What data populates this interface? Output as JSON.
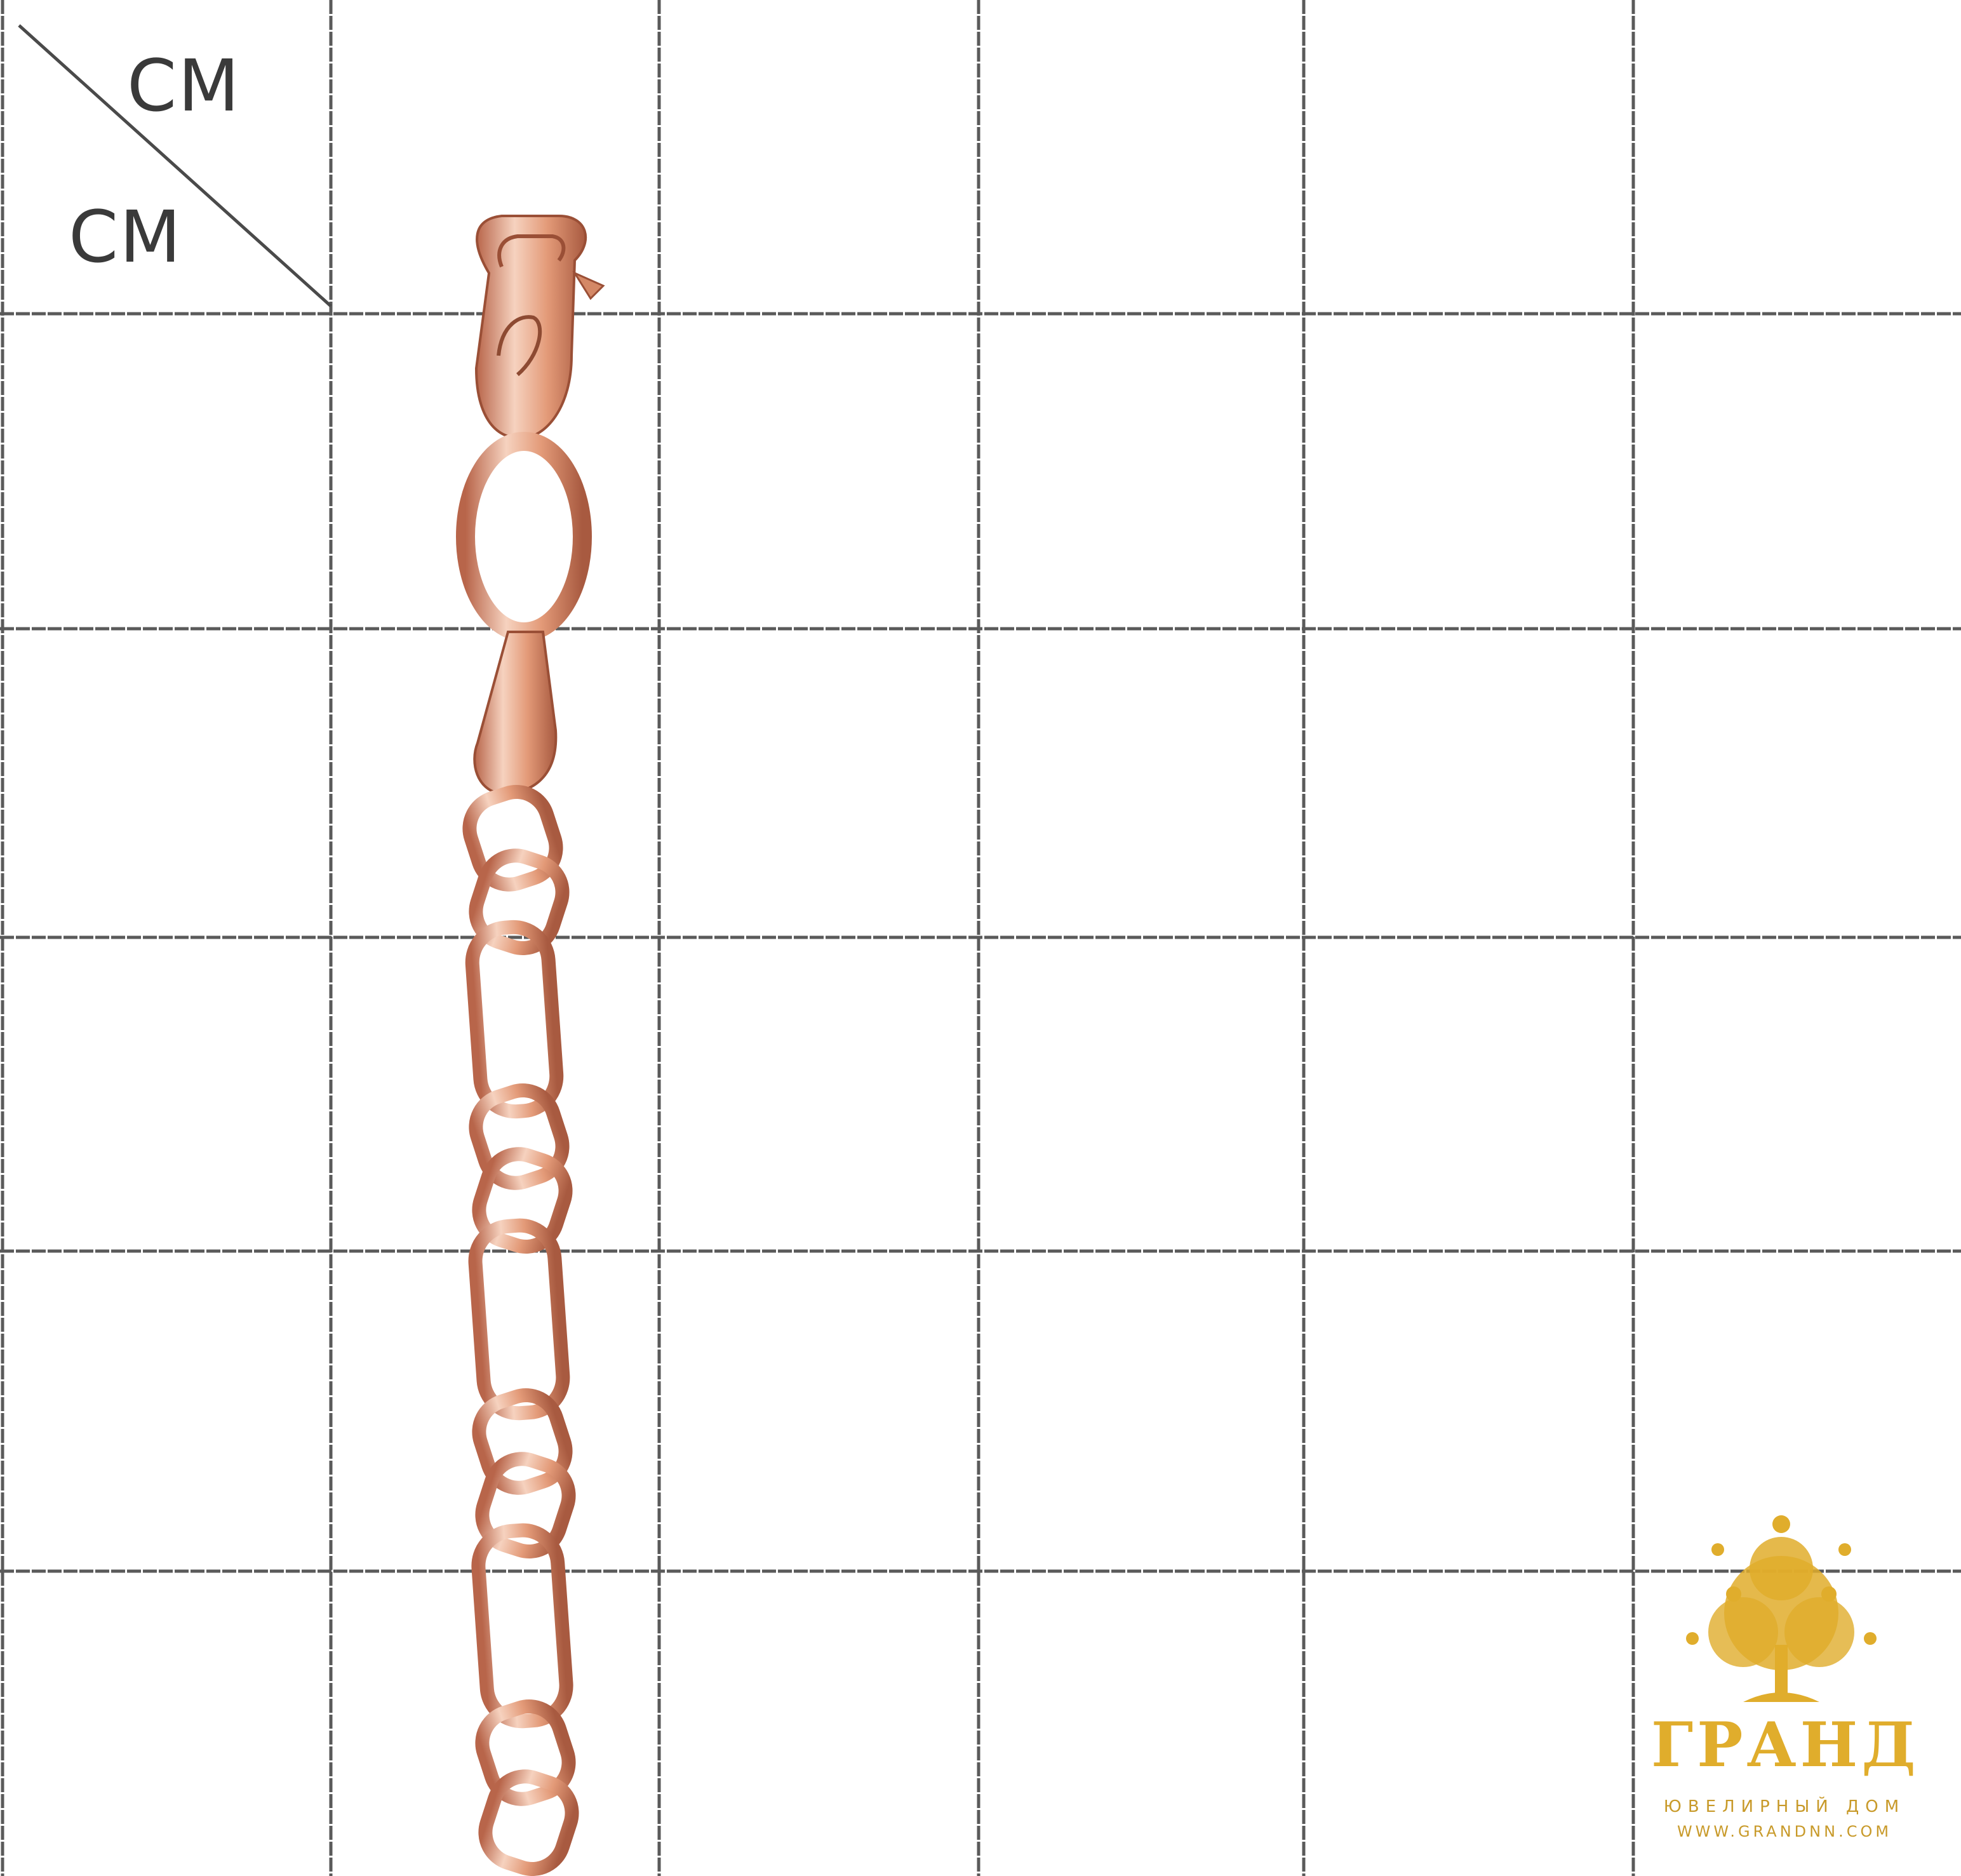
{
  "scale": {
    "unit_top": "CM",
    "unit_left": "CM"
  },
  "grid": {
    "columns": 6,
    "rows": 6,
    "line_color": "#5a5a5a",
    "background_color": "#ffffff"
  },
  "product": {
    "metal_color": "#e39a78",
    "highlight_color": "#f6d2bf",
    "shadow_color": "#b8654a"
  },
  "watermark": {
    "brand": "ГРАНД",
    "subtitle": "ЮВЕЛИРНЫЙ ДОМ",
    "url": "WWW.GRANDNN.COM",
    "color": "#e0ad2c",
    "emblem": "tree-emblem-icon"
  }
}
